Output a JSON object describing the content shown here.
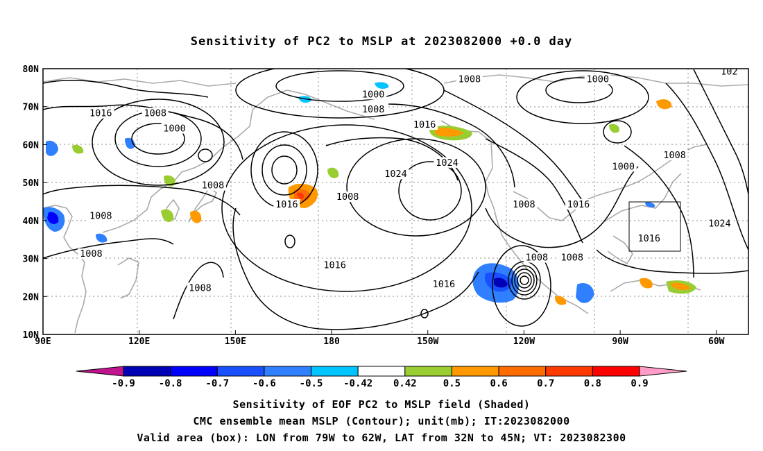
{
  "title": "Sensitivity of PC2 to MSLP at 2023082000 +0.0 day",
  "map": {
    "lat_ticks": [
      "80N",
      "70N",
      "60N",
      "50N",
      "40N",
      "30N",
      "20N",
      "10N"
    ],
    "lon_ticks": [
      "90E",
      "120E",
      "150E",
      "180",
      "150W",
      "120W",
      "90W",
      "60W"
    ],
    "valid_box": {
      "lon_range": "79W-62W",
      "lat_range": "32N-45N"
    },
    "contour_labels": [
      {
        "text": "1016",
        "lon": 108,
        "lat": 68
      },
      {
        "text": "1008",
        "lon": 125,
        "lat": 68
      },
      {
        "text": "1000",
        "lon": 131,
        "lat": 64
      },
      {
        "text": "1000",
        "lon": -167,
        "lat": 73
      },
      {
        "text": "1008",
        "lon": -167,
        "lat": 69
      },
      {
        "text": "1008",
        "lon": -137,
        "lat": 77
      },
      {
        "text": "1016",
        "lon": -151,
        "lat": 65
      },
      {
        "text": "1024",
        "lon": -144,
        "lat": 55
      },
      {
        "text": "1024",
        "lon": -160,
        "lat": 52
      },
      {
        "text": "1008",
        "lon": 143,
        "lat": 49
      },
      {
        "text": "1008",
        "lon": 108,
        "lat": 41
      },
      {
        "text": "1008",
        "lon": 105,
        "lat": 31
      },
      {
        "text": "1016",
        "lon": 166,
        "lat": 44
      },
      {
        "text": "1008",
        "lon": -175,
        "lat": 46
      },
      {
        "text": "1016",
        "lon": -179,
        "lat": 28
      },
      {
        "text": "1016",
        "lon": -145,
        "lat": 23
      },
      {
        "text": "1008",
        "lon": 139,
        "lat": 22
      },
      {
        "text": "1008",
        "lon": -120,
        "lat": 44
      },
      {
        "text": "1016",
        "lon": -103,
        "lat": 44
      },
      {
        "text": "1008",
        "lon": -116,
        "lat": 30
      },
      {
        "text": "1008",
        "lon": -105,
        "lat": 30
      },
      {
        "text": "1000",
        "lon": -97,
        "lat": 77
      },
      {
        "text": "1000",
        "lon": -89,
        "lat": 54
      },
      {
        "text": "1008",
        "lon": -73,
        "lat": 57
      },
      {
        "text": "1016",
        "lon": -81,
        "lat": 35
      },
      {
        "text": "1024",
        "lon": -59,
        "lat": 39
      },
      {
        "text": "102",
        "lon": -56,
        "lat": 79
      }
    ]
  },
  "colorbar": {
    "labels": [
      "-0.9",
      "-0.8",
      "-0.7",
      "-0.6",
      "-0.5",
      "-0.42",
      "0.42",
      "0.5",
      "0.6",
      "0.7",
      "0.8",
      "0.9"
    ],
    "colors": [
      "#0000b4",
      "#0000ff",
      "#1850ff",
      "#2f7fff",
      "#00c4ff",
      "#ffffff",
      "#9acd32",
      "#ff9900",
      "#ff6c00",
      "#ff3a00",
      "#ff0000"
    ],
    "low_color": "#c0148c",
    "high_color": "#ff9cc8"
  },
  "captions": {
    "line1": "Sensitivity of EOF PC2 to MSLP field (Shaded)",
    "line2": "CMC ensemble mean MSLP (Contour); unit(mb); IT:2023082000",
    "line3": "Valid area (box): LON from 79W to 62W, LAT from 32N to 45N; VT: 2023082300"
  }
}
